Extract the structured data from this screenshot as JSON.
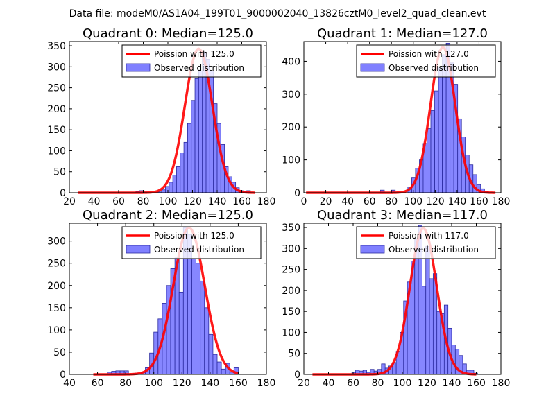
{
  "figure": {
    "suptitle": "Data file: modeM0/AS1A04_199T01_9000002040_13826cztM0_level2_quad_clean.evt"
  },
  "colors": {
    "bar_fill": "#8080ff",
    "bar_edge": "#2a2aa0",
    "curve": "#ff0000",
    "frame": "#000000",
    "legend_edge": "#000000"
  },
  "chart_data": [
    {
      "type": "bar",
      "title": "Quadrant 0: Median=125.0",
      "xlim": [
        20,
        180
      ],
      "ylim": [
        0,
        360
      ],
      "xticks": [
        20,
        40,
        60,
        80,
        100,
        120,
        140,
        160,
        180
      ],
      "yticks": [
        0,
        50,
        100,
        150,
        200,
        250,
        300,
        350
      ],
      "legend": {
        "position": "top-right",
        "line_label": "Poission with 125.0",
        "bar_label": "Observed distribution"
      },
      "bin_width": 3,
      "bins": [
        [
          74,
          3
        ],
        [
          77,
          5
        ],
        [
          80,
          2
        ],
        [
          92,
          2
        ],
        [
          95,
          7
        ],
        [
          98,
          15
        ],
        [
          101,
          25
        ],
        [
          104,
          42
        ],
        [
          107,
          62
        ],
        [
          110,
          95
        ],
        [
          113,
          120
        ],
        [
          116,
          165
        ],
        [
          119,
          220
        ],
        [
          122,
          272
        ],
        [
          125,
          290
        ],
        [
          128,
          335
        ],
        [
          131,
          318
        ],
        [
          134,
          290
        ],
        [
          137,
          212
        ],
        [
          140,
          165
        ],
        [
          143,
          115
        ],
        [
          146,
          62
        ],
        [
          149,
          38
        ],
        [
          152,
          25
        ],
        [
          155,
          12
        ],
        [
          158,
          5
        ],
        [
          161,
          3
        ],
        [
          164,
          5
        ]
      ],
      "curve": {
        "mean": 125.0,
        "peak": 343,
        "x_start": 27,
        "x_end": 171
      }
    },
    {
      "type": "bar",
      "title": "Quadrant 1: Median=127.0",
      "xlim": [
        0,
        180
      ],
      "ylim": [
        0,
        460
      ],
      "xticks": [
        0,
        20,
        40,
        60,
        80,
        100,
        120,
        140,
        160,
        180
      ],
      "yticks": [
        0,
        100,
        200,
        300,
        400
      ],
      "legend": {
        "position": "top-right",
        "line_label": "Poission with 127.0",
        "bar_label": "Observed distribution"
      },
      "bin_width": 3.5,
      "bins": [
        [
          70,
          8
        ],
        [
          80,
          8
        ],
        [
          95,
          18
        ],
        [
          98.5,
          45
        ],
        [
          102,
          75
        ],
        [
          105.5,
          100
        ],
        [
          109,
          150
        ],
        [
          112.5,
          195
        ],
        [
          116,
          250
        ],
        [
          119.5,
          310
        ],
        [
          123,
          380
        ],
        [
          126.5,
          420
        ],
        [
          130,
          455
        ],
        [
          133.5,
          395
        ],
        [
          137,
          330
        ],
        [
          140.5,
          225
        ],
        [
          144,
          170
        ],
        [
          147.5,
          115
        ],
        [
          151,
          85
        ],
        [
          154.5,
          55
        ],
        [
          158,
          25
        ],
        [
          161.5,
          12
        ],
        [
          165,
          3
        ]
      ],
      "curve": {
        "mean": 127.0,
        "peak": 443,
        "x_start": 2,
        "x_end": 175
      }
    },
    {
      "type": "bar",
      "title": "Quadrant 2: Median=125.0",
      "xlim": [
        40,
        180
      ],
      "ylim": [
        0,
        340
      ],
      "xticks": [
        40,
        60,
        80,
        100,
        120,
        140,
        160,
        180
      ],
      "yticks": [
        0,
        50,
        100,
        150,
        200,
        250,
        300
      ],
      "legend": {
        "position": "top-right",
        "line_label": "Poission with 125.0",
        "bar_label": "Observed distribution"
      },
      "bin_width": 3,
      "bins": [
        [
          67,
          5
        ],
        [
          70,
          7
        ],
        [
          73,
          8
        ],
        [
          76,
          8
        ],
        [
          79,
          8
        ],
        [
          85,
          2
        ],
        [
          88,
          2
        ],
        [
          91,
          5
        ],
        [
          94,
          15
        ],
        [
          97,
          48
        ],
        [
          100,
          95
        ],
        [
          103,
          125
        ],
        [
          106,
          160
        ],
        [
          109,
          200
        ],
        [
          112,
          238
        ],
        [
          115,
          262
        ],
        [
          118,
          185
        ],
        [
          121,
          330
        ],
        [
          124,
          315
        ],
        [
          127,
          260
        ],
        [
          130,
          250
        ],
        [
          133,
          210
        ],
        [
          136,
          150
        ],
        [
          139,
          90
        ],
        [
          142,
          45
        ],
        [
          145,
          28
        ],
        [
          148,
          12
        ],
        [
          151,
          25
        ],
        [
          154,
          5
        ],
        [
          157,
          15
        ]
      ],
      "curve": {
        "mean": 125.0,
        "peak": 330,
        "x_start": 57,
        "x_end": 160
      }
    },
    {
      "type": "bar",
      "title": "Quadrant 3: Median=117.0",
      "xlim": [
        20,
        180
      ],
      "ylim": [
        0,
        360
      ],
      "xticks": [
        20,
        40,
        60,
        80,
        100,
        120,
        140,
        160,
        180
      ],
      "yticks": [
        0,
        50,
        100,
        150,
        200,
        250,
        300,
        350
      ],
      "legend": {
        "position": "top-right",
        "line_label": "Poission with 117.0",
        "bar_label": "Observed distribution"
      },
      "bin_width": 3,
      "bins": [
        [
          59,
          5
        ],
        [
          62,
          10
        ],
        [
          65,
          8
        ],
        [
          68,
          10
        ],
        [
          71,
          5
        ],
        [
          74,
          12
        ],
        [
          77,
          8
        ],
        [
          80,
          12
        ],
        [
          83,
          25
        ],
        [
          86,
          15
        ],
        [
          89,
          20
        ],
        [
          92,
          28
        ],
        [
          95,
          55
        ],
        [
          98,
          100
        ],
        [
          101,
          175
        ],
        [
          104,
          220
        ],
        [
          107,
          270
        ],
        [
          110,
          322
        ],
        [
          113,
          355
        ],
        [
          116,
          210
        ],
        [
          119,
          305
        ],
        [
          122,
          228
        ],
        [
          125,
          240
        ],
        [
          128,
          150
        ],
        [
          131,
          145
        ],
        [
          134,
          165
        ],
        [
          137,
          110
        ],
        [
          140,
          70
        ],
        [
          143,
          60
        ],
        [
          146,
          45
        ],
        [
          149,
          25
        ],
        [
          152,
          10
        ],
        [
          155,
          10
        ],
        [
          158,
          3
        ]
      ],
      "curve": {
        "mean": 117.0,
        "peak": 348,
        "x_start": 27,
        "x_end": 160
      }
    }
  ]
}
